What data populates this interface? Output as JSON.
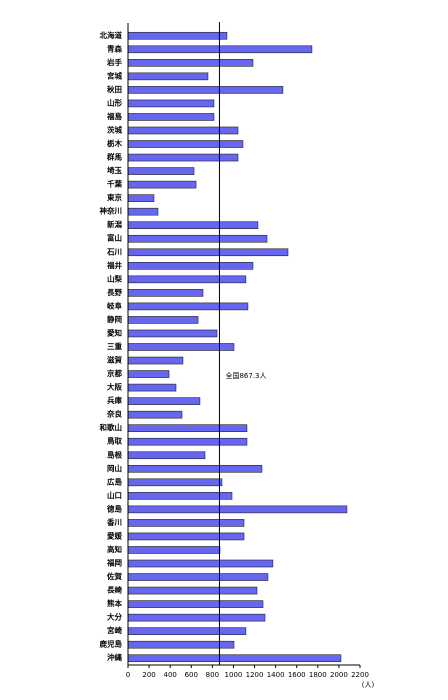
{
  "chart_data": {
    "type": "barh",
    "categories": [
      "北海道",
      "青森",
      "岩手",
      "宮城",
      "秋田",
      "山形",
      "福島",
      "茨城",
      "栃木",
      "群馬",
      "埼玉",
      "千葉",
      "東京",
      "神奈川",
      "新潟",
      "富山",
      "石川",
      "福井",
      "山梨",
      "長野",
      "岐阜",
      "静岡",
      "愛知",
      "三重",
      "滋賀",
      "京都",
      "大阪",
      "兵庫",
      "奈良",
      "和歌山",
      "鳥取",
      "島根",
      "岡山",
      "広島",
      "山口",
      "徳島",
      "香川",
      "愛媛",
      "高知",
      "福岡",
      "佐賀",
      "長崎",
      "熊本",
      "大分",
      "宮崎",
      "鹿児島",
      "沖縄"
    ],
    "values": [
      938,
      1744,
      1185,
      758,
      1469,
      815,
      815,
      1043,
      1090,
      1043,
      626,
      645,
      246,
      284,
      1232,
      1318,
      1517,
      1185,
      1118,
      711,
      1137,
      664,
      844,
      1005,
      521,
      389,
      455,
      682,
      512,
      1128,
      1128,
      730,
      1270,
      891,
      986,
      2076,
      1100,
      1100,
      872,
      1374,
      1327,
      1223,
      1280,
      1299,
      1118,
      1005,
      2019
    ],
    "color": "#6666ee",
    "xlim": [
      0,
      2200
    ],
    "xticks": [
      0,
      200,
      400,
      600,
      800,
      1000,
      1200,
      1400,
      1600,
      1800,
      2000,
      2200
    ],
    "x_unit": "(人)",
    "reference_line": {
      "value": 867.3,
      "label": "全国867.3人"
    }
  }
}
